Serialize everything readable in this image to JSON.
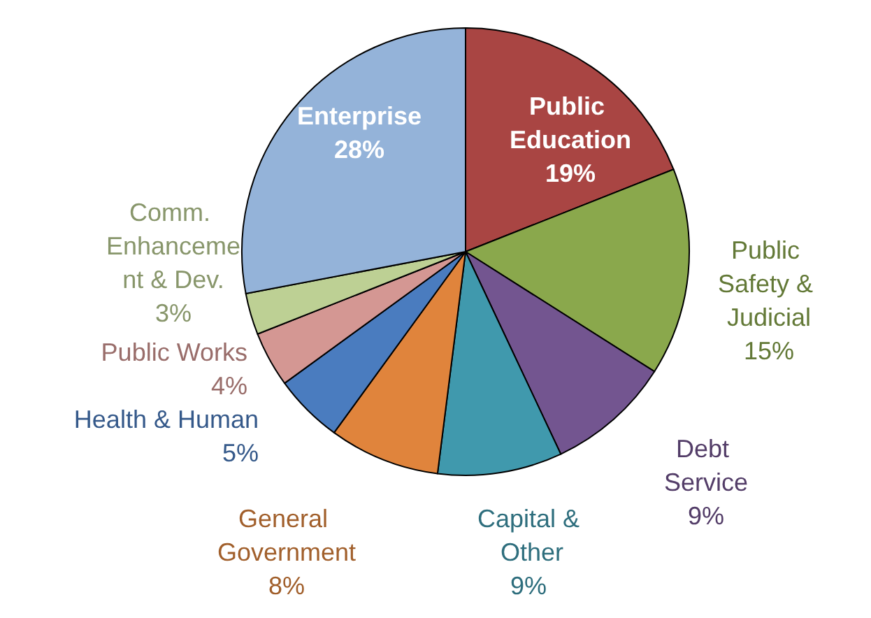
{
  "chart_data": {
    "type": "pie",
    "categories": [
      "Public Education",
      "Public Safety & Judicial",
      "Debt Service",
      "Capital & Other",
      "General Government",
      "Health & Human",
      "Public Works",
      "Comm. Enhancement & Dev.",
      "Enterprise"
    ],
    "values": [
      19,
      15,
      9,
      9,
      8,
      5,
      4,
      3,
      28
    ],
    "colors": [
      "#a94543",
      "#8aa84c",
      "#735590",
      "#4099ad",
      "#e0843c",
      "#4a7cbf",
      "#d49793",
      "#bdd094",
      "#94b3d9"
    ],
    "value_labels": [
      "19%",
      "15%",
      "9%",
      "9%",
      "8%",
      "5%",
      "4%",
      "3%",
      "28%"
    ],
    "legend": false
  }
}
